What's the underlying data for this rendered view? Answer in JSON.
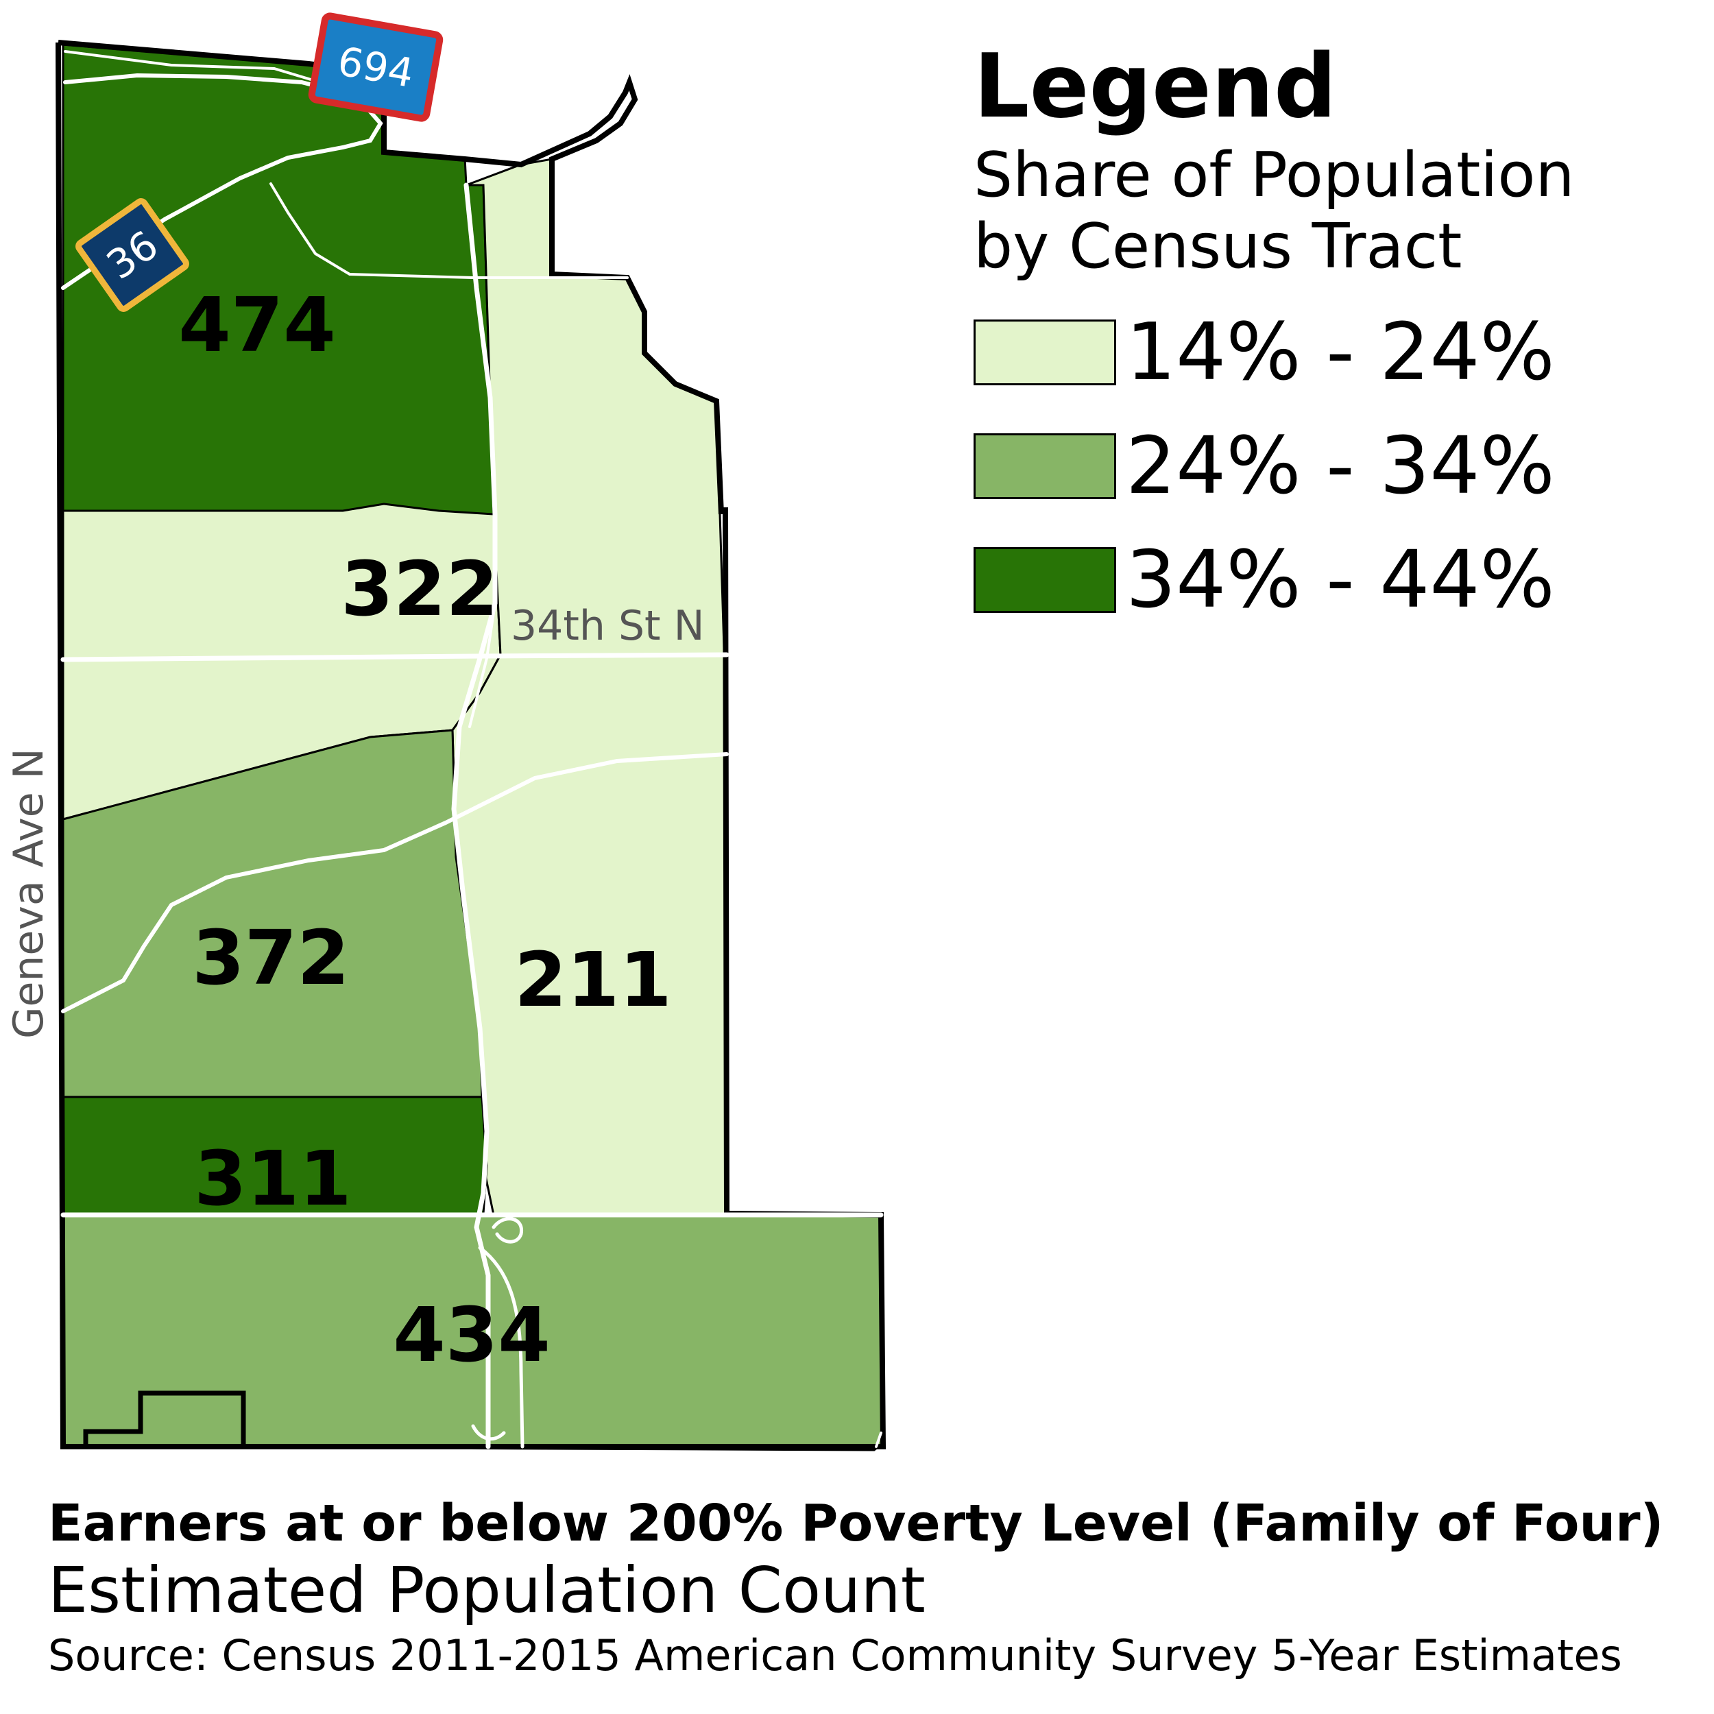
{
  "legend": {
    "title": "Legend",
    "subtitle": "Share of Population by Census Tract",
    "classes": [
      {
        "label": "14% - 24%",
        "color": "#e3f4cb"
      },
      {
        "label": "24% - 34%",
        "color": "#87b566"
      },
      {
        "label": "34% - 44%",
        "color": "#287406"
      }
    ]
  },
  "tracts": [
    {
      "label": "474",
      "class_index": 2
    },
    {
      "label": "322",
      "class_index": 0
    },
    {
      "label": "372",
      "class_index": 1
    },
    {
      "label": "211",
      "class_index": 0
    },
    {
      "label": "311",
      "class_index": 2
    },
    {
      "label": "434",
      "class_index": 1
    }
  ],
  "streets": {
    "north_south": "34th St N",
    "west": "Geneva Ave N"
  },
  "shields": {
    "interstate": "694",
    "state": "36"
  },
  "shield_colors": {
    "interstate_fill": "#1a7fc6",
    "interstate_border": "#d62a2a",
    "state_fill": "#0d3a6a",
    "state_border": "#f0b63b"
  },
  "caption": {
    "title": "Earners at or below 200% Poverty Level (Family of Four)",
    "subtitle": "Estimated Population Count",
    "source": "Source: Census 2011-2015 American Community Survey 5-Year Estimates"
  }
}
